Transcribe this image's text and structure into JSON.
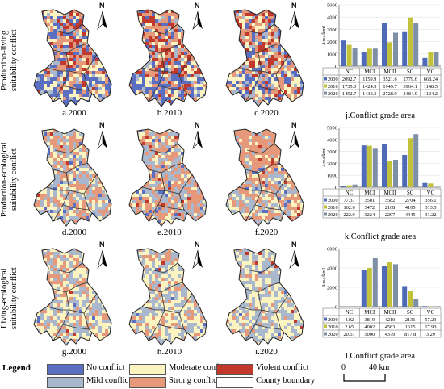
{
  "rows": [
    {
      "title": "Production-living\nsuitability conflict"
    },
    {
      "title": "Production-ecological\nsuitability conflict"
    },
    {
      "title": "Living-ecological\nsuitability conflict"
    }
  ],
  "maps": [
    {
      "label": "a.2000"
    },
    {
      "label": "b.2010"
    },
    {
      "label": "c.2020"
    },
    {
      "label": "d.2000"
    },
    {
      "label": "e.2010"
    },
    {
      "label": "f.2020"
    },
    {
      "label": "g.2000"
    },
    {
      "label": "h.2010"
    },
    {
      "label": "i.2020"
    }
  ],
  "north_label": "N",
  "legend": {
    "title": "Legend",
    "items": [
      {
        "label": "No conflict",
        "color": "#5b6fc2"
      },
      {
        "label": "Mild conflict",
        "color": "#a9b8cc"
      },
      {
        "label": "Moderate conflict",
        "color": "#fbf3c0"
      },
      {
        "label": "Strong conflict",
        "color": "#e6997a"
      },
      {
        "label": "Violent conflict",
        "color": "#c0392b"
      },
      {
        "label": "County boundary",
        "color": "#ffffff"
      }
    ]
  },
  "scale": {
    "zero": "0",
    "dist": "40 km"
  },
  "chart_data": [
    {
      "type": "bar",
      "title": "j.Conflict grade area",
      "ylabel": "Area/km²",
      "ylim": [
        0,
        5000
      ],
      "yticks": [
        "0",
        "1000",
        "2000",
        "3000",
        "4000",
        "5000"
      ],
      "categories": [
        "NC",
        "MCI",
        "MCII",
        "SC",
        "VC"
      ],
      "series": [
        {
          "name": "2000",
          "color": "#4f6bb8",
          "values": [
            2092.7,
            1159.9,
            3521.6,
            2779.6,
            668.24
          ],
          "labels": [
            "2092.7",
            "1159.9",
            "3521.6",
            "2779.6",
            "668.24"
          ]
        },
        {
          "name": "2010",
          "color": "#c2c23a",
          "values": [
            1735.0,
            1424.9,
            1949.7,
            3964.1,
            1148.5
          ],
          "labels": [
            "1735.0",
            "1424.9",
            "1949.7",
            "3964.1",
            "1148.5"
          ]
        },
        {
          "name": "2020",
          "color": "#7f8fa6",
          "values": [
            1452.7,
            1432.3,
            2728.9,
            3484.9,
            1124.2
          ],
          "labels": [
            "1452.7",
            "1432.3",
            "2728.9",
            "3484.9",
            "1124.2"
          ]
        }
      ]
    },
    {
      "type": "bar",
      "title": "k.Conflict grade area",
      "ylabel": "Area/km²",
      "ylim": [
        0,
        5000
      ],
      "yticks": [
        "0",
        "1000",
        "2000",
        "3000",
        "4000",
        "5000"
      ],
      "categories": [
        "NC",
        "MCI",
        "MCII",
        "SC",
        "VC"
      ],
      "series": [
        {
          "name": "2000",
          "color": "#4f6bb8",
          "values": [
            77.37,
            3501,
            3582,
            2704,
            356.1
          ],
          "labels": [
            "77.37",
            "3501",
            "3582",
            "2704",
            "356.1"
          ]
        },
        {
          "name": "2010",
          "color": "#c2c23a",
          "values": [
            162.6,
            3472,
            2168,
            4105,
            313.5
          ],
          "labels": [
            "162.6",
            "3472",
            "2168",
            "4105",
            "313.5"
          ]
        },
        {
          "name": "2020",
          "color": "#7f8fa6",
          "values": [
            222.9,
            3224,
            2297,
            4445,
            31.22
          ],
          "labels": [
            "222.9",
            "3224",
            "2297",
            "4445",
            "31.22"
          ]
        }
      ]
    },
    {
      "type": "bar",
      "title": "l.Conflict grade area",
      "ylabel": "Area/km²",
      "ylim": [
        0,
        6000
      ],
      "yticks": [
        "0",
        "2000",
        "4000",
        "6000"
      ],
      "categories": [
        "NC",
        "MCI",
        "MCII",
        "SC",
        "VC"
      ],
      "series": [
        {
          "name": "2000",
          "color": "#4f6bb8",
          "values": [
            4.02,
            3819,
            4210,
            2131,
            57.23
          ],
          "labels": [
            "4.02",
            "3819",
            "4210",
            "2131",
            "57.23"
          ]
        },
        {
          "name": "2010",
          "color": "#c2c23a",
          "values": [
            2.65,
            4002,
            4583,
            1615,
            17.93
          ],
          "labels": [
            "2.65",
            "4002",
            "4583",
            "1615",
            "17.93"
          ]
        },
        {
          "name": "2020",
          "color": "#7f8fa6",
          "values": [
            20.51,
            5000,
            4379,
            817.8,
            3.29
          ],
          "labels": [
            "20.51",
            "5000",
            "4379",
            "817.8",
            "3.29"
          ]
        }
      ]
    }
  ]
}
